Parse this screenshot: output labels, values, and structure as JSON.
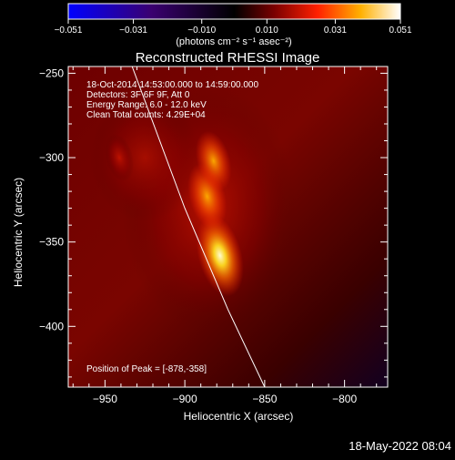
{
  "chart_data": {
    "type": "heatmap",
    "title": "Reconstructed RHESSI Image",
    "xlabel": "Heliocentric X (arcsec)",
    "ylabel": "Heliocentric Y (arcsec)",
    "xlim": [
      -973,
      -773
    ],
    "ylim": [
      -436,
      -246
    ],
    "x_ticks": [
      -950,
      -900,
      -850,
      -800
    ],
    "x_tick_labels": [
      "−950",
      "−900",
      "−850",
      "−800"
    ],
    "y_ticks": [
      -250,
      -300,
      -350,
      -400
    ],
    "y_tick_labels": [
      "−250",
      "−300",
      "−350",
      "−400"
    ],
    "colorbar": {
      "min": -0.051,
      "max": 0.051,
      "ticks": [
        -0.051,
        -0.031,
        -0.01,
        0.01,
        0.031,
        0.051
      ],
      "tick_labels": [
        "−0.051",
        "−0.031",
        "−0.010",
        "0.010",
        "0.031",
        "0.051"
      ],
      "units": "(photons cm⁻² s⁻¹ asec⁻²)",
      "colormap": [
        "#0000ff",
        "#000000",
        "#ff0000",
        "#ffff00",
        "#ffffff"
      ]
    },
    "annotations": [
      "18-Oct-2014 14:53:00.000 to 14:59:00.000",
      "Detectors: 3F 6F 9F, Att 0",
      "Energy Range: 6.0 - 12.0 keV",
      "Clean     Total counts: 4.29E+04"
    ],
    "peak_label": "Position of Peak = [-878,-358]",
    "peak": {
      "x": -878,
      "y": -358
    },
    "sources": [
      {
        "x": -878,
        "y": -358,
        "intensity": 0.051
      },
      {
        "x": -886,
        "y": -323,
        "intensity": 0.036
      },
      {
        "x": -882,
        "y": -302,
        "intensity": 0.03
      },
      {
        "x": -941,
        "y": -300,
        "intensity": 0.018
      }
    ],
    "limb": [
      [
        -933,
        -246
      ],
      [
        -900,
        -330
      ],
      [
        -873,
        -390
      ],
      [
        -850,
        -436
      ]
    ],
    "timestamp": "18-May-2022 08:04"
  }
}
